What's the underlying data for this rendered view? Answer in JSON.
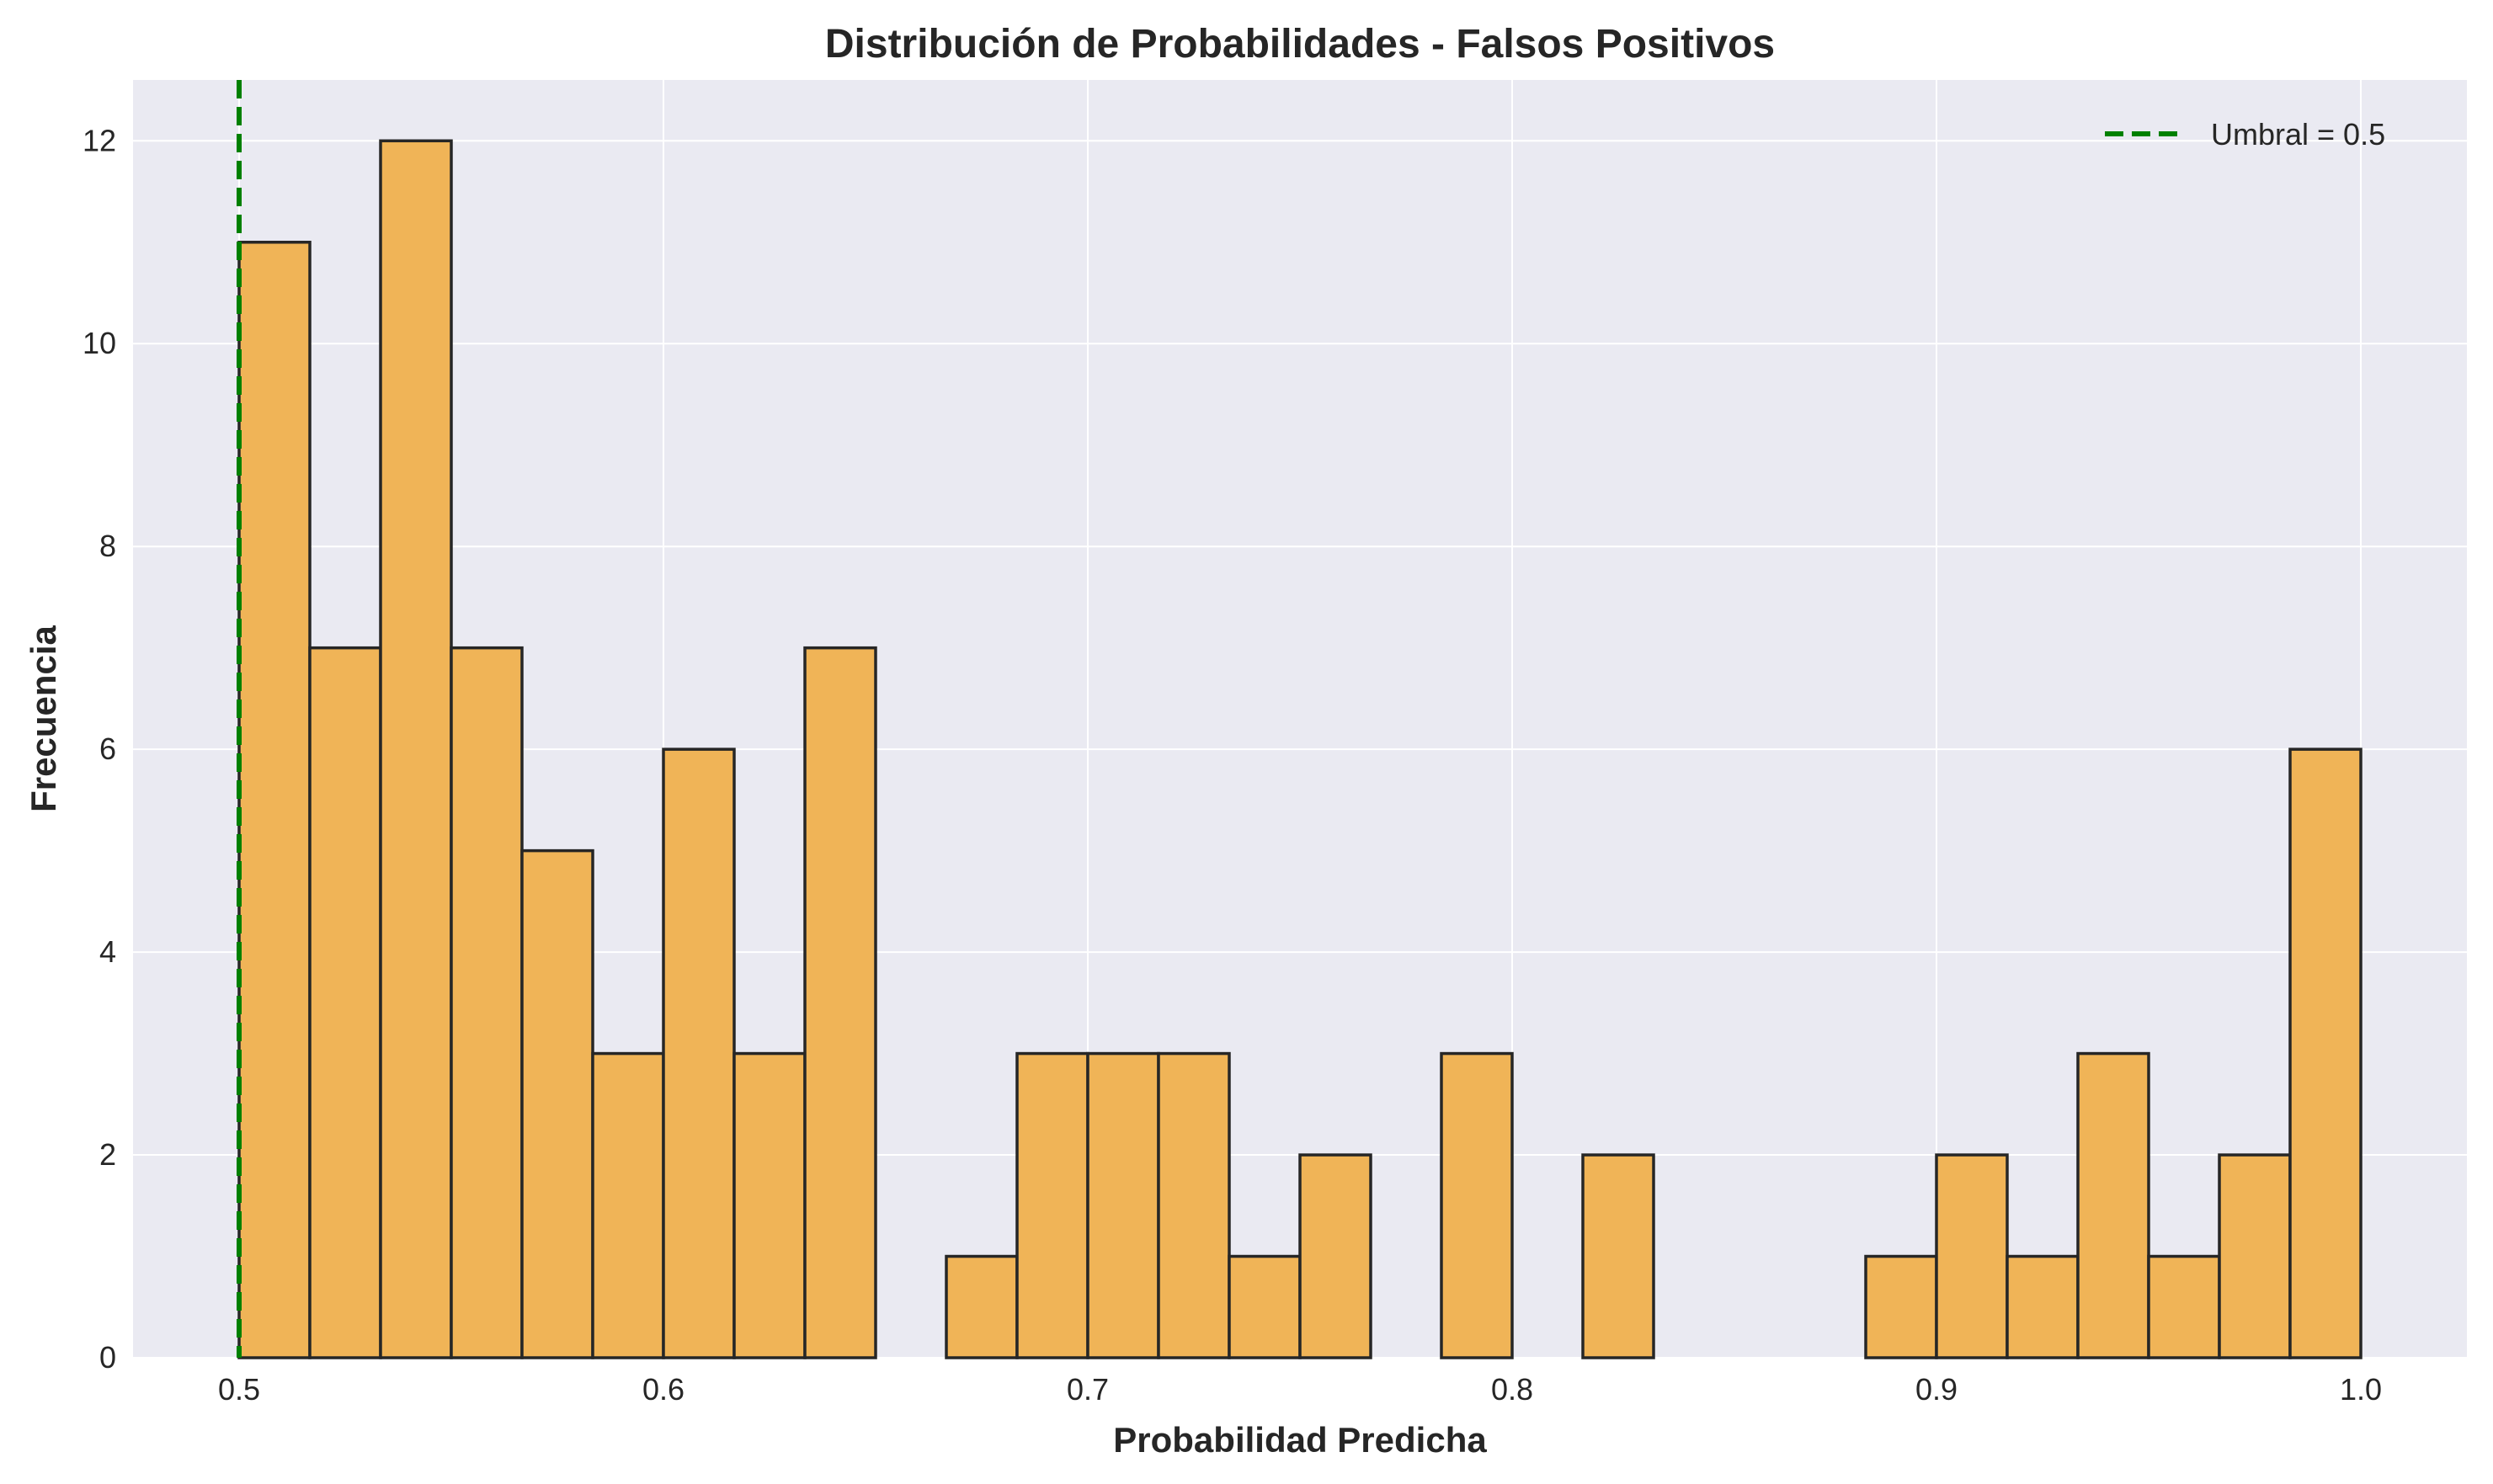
{
  "chart_data": {
    "type": "bar",
    "subtype": "histogram",
    "title": "Distribución de Probabilidades - Falsos Positivos",
    "xlabel": "Probabilidad Predicha",
    "ylabel": "Frecuencia",
    "xlim": [
      0.475,
      1.025
    ],
    "ylim": [
      0,
      12.6
    ],
    "bin_range": [
      0.5,
      1.0
    ],
    "bin_count": 30,
    "counts": [
      11,
      7,
      12,
      7,
      5,
      3,
      6,
      3,
      7,
      0,
      1,
      3,
      3,
      3,
      1,
      2,
      0,
      3,
      0,
      2,
      0,
      0,
      0,
      1,
      2,
      1,
      3,
      1,
      2,
      6
    ],
    "xticks": [
      "0.5",
      "0.6",
      "0.7",
      "0.8",
      "0.9",
      "1.0"
    ],
    "xtick_values": [
      0.5,
      0.6,
      0.7,
      0.8,
      0.9,
      1.0
    ],
    "yticks": [
      "0",
      "2",
      "4",
      "6",
      "8",
      "10",
      "12"
    ],
    "ytick_values": [
      0,
      2,
      4,
      6,
      8,
      10,
      12
    ],
    "threshold": {
      "value": 0.5,
      "label": "Umbral = 0.5",
      "color": "#008000",
      "style": "dashed"
    },
    "legend_position": "top-right",
    "grid": true,
    "colors": {
      "bar_fill": "#F0B457",
      "bar_edge": "#262626",
      "plot_bg": "#EAEAF2",
      "grid": "#FFFFFF"
    }
  }
}
